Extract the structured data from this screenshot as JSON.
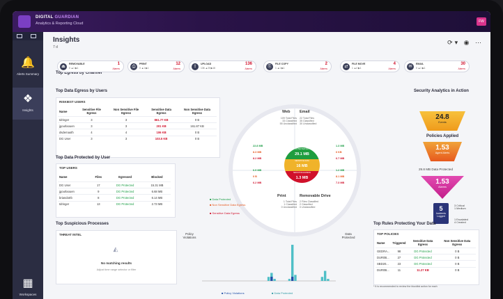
{
  "topbar": {
    "brand_line1_a": "DIGITAL ",
    "brand_line1_b": "GUARDIAN",
    "brand_line2": "Analytics & Reporting Cloud",
    "user_badge": "FW"
  },
  "sidebar": {
    "items": [
      {
        "label": "Alerts Summary"
      },
      {
        "label": "Insights"
      },
      {
        "label": "Workspaces"
      }
    ]
  },
  "header": {
    "title": "Insights",
    "subtitle": "7 d"
  },
  "egress": {
    "title": "Top Egress by Channel",
    "channels": [
      {
        "label": "REMOVABLE",
        "stats": "0  ▲1  ▶1",
        "count": "1",
        "unit": "Alarms",
        "icon": "usb-icon"
      },
      {
        "label": "PRINT",
        "stats": "0  ▲1  ▶1",
        "count": "12",
        "unit": "Alarms",
        "icon": "printer-icon"
      },
      {
        "label": "UPLOAD",
        "stats": "136  ▲20  ▶16",
        "count": "136",
        "unit": "Alarms",
        "icon": "upload-icon"
      },
      {
        "label": "FILE COPY",
        "stats": "1 ▲1  ▶1",
        "count": "2",
        "unit": "Alarms",
        "icon": "copy-icon"
      },
      {
        "label": "FILE MOVE",
        "stats": "1 ▲4  ▶1",
        "count": "4",
        "unit": "Alarms",
        "icon": "move-icon"
      },
      {
        "label": "EMAIL",
        "stats": "0  ▲1  ▶1",
        "count": "30",
        "unit": "Alarms",
        "icon": "email-icon"
      }
    ]
  },
  "egress_users": {
    "title": "Top Data Egress by Users",
    "panel_title": "RISKIEST USERS",
    "columns": [
      "Name",
      "Sensitive File Egress",
      "Non Sensitive File Egress",
      "Sensitive Data Egress",
      "Non Sensitive Data Egress"
    ],
    "rows": [
      [
        "tdringer",
        "3",
        "3",
        "861.77 KB",
        "0 B"
      ],
      [
        "jgourlaouen",
        "3",
        "3",
        "201 KB",
        "161.87 KB"
      ],
      [
        "dsdemaoth",
        "4",
        "4",
        "106 KB",
        "0 B"
      ],
      [
        "DG User",
        "3",
        "3",
        "103.5 KB",
        "0 B"
      ]
    ]
  },
  "protected_users": {
    "title": "Top Data Protected by User",
    "panel_title": "TOP USERS",
    "columns": [
      "Name",
      "Files",
      "Egressed",
      "Blocked"
    ],
    "rows": [
      [
        "DG User",
        "17",
        "DG Protected",
        "15.31 MB"
      ],
      [
        "jgourlaouen",
        "9",
        "DG Protected",
        "6.68 MB"
      ],
      [
        "briandotrb",
        "8",
        "DG Protected",
        "6.14 MB"
      ],
      [
        "tdringer",
        "13",
        "DG Protected",
        "2.73 MB"
      ]
    ]
  },
  "channel_wheel": {
    "web": {
      "label": "Web",
      "lines": [
        "109 Total Files",
        "33 Classified",
        "55 Unclassified"
      ]
    },
    "email": {
      "label": "Email",
      "lines": [
        "22 Total Files",
        "35 Classified",
        "30 Unclassified"
      ]
    },
    "print": {
      "label": "Print",
      "lines": [
        "1 Total Files",
        "1 Classified",
        "0 Unclassified"
      ]
    },
    "removable": {
      "label": "Removable Drive",
      "lines": [
        "2 Files Classified",
        "2 Classified",
        "0 Unclassified"
      ]
    },
    "web_nums": [
      "22.8 MB",
      "8.3 MB",
      "8.2 MB"
    ],
    "email_nums": [
      "1.3 MB",
      "6 KB",
      "6.7 MB"
    ],
    "print_nums": [
      "6.9 MB",
      "0 B",
      "6.2 MB"
    ],
    "removable_nums": [
      "1.2 MB",
      "8.1 MB",
      "7.3 MB"
    ],
    "hub": [
      {
        "small": "PROTECTED DATA",
        "value": "29.1 MB",
        "color": "#1f9d3f"
      },
      {
        "small": "SENSITIVE DATA",
        "value": "16 MB",
        "color": "#f0b32a"
      },
      {
        "small": "SENSITIVE EGRESS",
        "value": "1.3 MB",
        "color": "#d0112b"
      }
    ]
  },
  "legend": [
    {
      "label": "Data Protected",
      "color": "#1c9e46"
    },
    {
      "label": "Non Sensitive Data Egress",
      "color": "#f0a33a"
    },
    {
      "label": "Sensitive Data Egress",
      "color": "#d0112b"
    }
  ],
  "security": {
    "title": "Security Analytics in Action",
    "events_value": "24.8",
    "events_unit": "Events",
    "policies_title": "Policies Applied",
    "agent_value": "1.53",
    "agent_unit": "Agent Alerts",
    "protected_line": "29.8 MB Data Protected",
    "alarms_value": "1.53",
    "alarms_unit": "Alarms",
    "incidents_value": "5",
    "incidents_unit": "Incidents Logged",
    "notes_a": [
      "3 Critical",
      "1 Medium"
    ],
    "notes_b": [
      "1 Escalated",
      "4 Created"
    ]
  },
  "processes": {
    "title": "Top Suspicious Processes",
    "panel_title": "THREAT INTEL",
    "empty_title": "No matching results",
    "empty_sub": "Adjust time range selector or filter"
  },
  "timeline": {
    "left_label": "Policy Violations",
    "right_label": "Data Protected",
    "legend": [
      "Policy Violations",
      "Data Protected"
    ]
  },
  "chart_data": {
    "type": "bar",
    "title": "",
    "series": [
      {
        "name": "Policy Violations",
        "color": "#1f4fa8",
        "values": [
          0,
          0,
          0,
          0,
          0,
          0,
          0,
          0,
          0,
          0,
          0,
          0,
          0,
          0,
          0,
          0,
          0,
          0,
          0,
          0,
          0,
          0,
          0,
          1,
          0,
          0,
          0,
          0,
          0,
          0,
          1,
          0,
          0,
          0,
          0,
          0,
          0,
          0,
          0,
          0,
          0,
          0,
          0,
          0,
          0
        ]
      },
      {
        "name": "Data Protected",
        "color": "#4fbfc7",
        "values": [
          0,
          0,
          0,
          0,
          0,
          0,
          0,
          0,
          0,
          0,
          0,
          0,
          0,
          0,
          0,
          0,
          0,
          0,
          0,
          0,
          0,
          0,
          2,
          4,
          1,
          0,
          0,
          0,
          0,
          1,
          18,
          3,
          0,
          0,
          0,
          0,
          0,
          0,
          0,
          0,
          2,
          5,
          1,
          0,
          0
        ]
      }
    ]
  },
  "rules": {
    "title": "Top Rules Protecting Your Data",
    "panel_title": "TOP POLICIES",
    "columns": [
      "Name",
      "Triggered",
      "Sensitive Data Egress",
      "Non Sensitive Data Egress"
    ],
    "rows": [
      [
        "GEDRA...",
        "98",
        "DG Protected",
        "0 B"
      ],
      [
        "DUR0B...",
        "27",
        "DG Protected",
        "0 B"
      ],
      [
        "SBD20...",
        "23",
        "DG Protected",
        "0 B"
      ],
      [
        "DUR0B...",
        "11",
        "11.27 KB",
        "0 B"
      ]
    ],
    "footnote": "* It is recommended to review the blocklist action for each"
  }
}
